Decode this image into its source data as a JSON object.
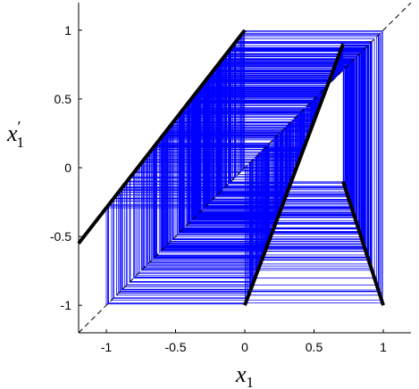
{
  "chart_data": {
    "type": "line",
    "xlabel": "x_1",
    "ylabel": "x'_1",
    "xlim": [
      -1.2,
      1.2
    ],
    "ylim": [
      -1.2,
      1.2
    ],
    "xticks": [
      -1,
      -0.5,
      0,
      0.5,
      1
    ],
    "xtick_labels": [
      "-1",
      "-0.5",
      "0",
      "0.5",
      "1"
    ],
    "yticks": [
      -1,
      -0.5,
      0,
      0.5,
      1
    ],
    "ytick_labels": [
      "-1",
      "-0.5",
      "0",
      "0.5",
      "1"
    ],
    "grid": false,
    "colors": {
      "map": "#000000",
      "identity": "#000000",
      "cobweb": "#0000ff"
    },
    "map_segments": [
      {
        "x": [
          -1.2,
          0.0
        ],
        "y": [
          -0.55,
          1.0
        ]
      },
      {
        "x": [
          0.0,
          0.71
        ],
        "y": [
          -1.0,
          0.9
        ]
      },
      {
        "x": [
          0.71,
          1.0
        ],
        "y": [
          -0.1,
          -1.0
        ]
      }
    ],
    "identity_line": {
      "x": [
        -1.2,
        1.2
      ],
      "y": [
        -1.2,
        1.2
      ]
    },
    "cobweb_start": -1.0,
    "cobweb_iterations": 600
  }
}
